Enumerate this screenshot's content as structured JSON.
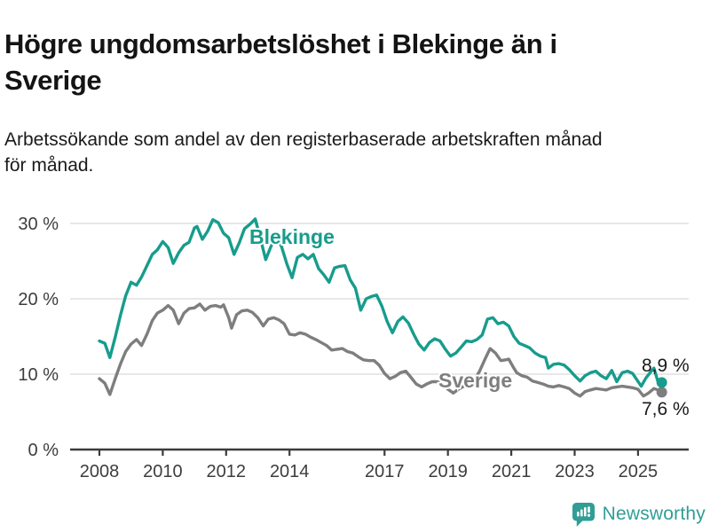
{
  "header": {
    "title_lines": [
      "Högre ungdomsarbetslöshet i Blekinge än i",
      "Sverige"
    ],
    "subtitle_lines": [
      "Arbetssökande som andel av den registerbaserade arbetskraften månad",
      "för månad."
    ]
  },
  "chart_data": {
    "type": "line",
    "title": "Högre ungdomsarbetslöshet i Blekinge än i Sverige",
    "subtitle": "Arbetssökande som andel av den registerbaserade arbetskraften månad för månad.",
    "xlabel": "",
    "ylabel": "",
    "unit": "%",
    "grid": true,
    "xlim": [
      2007.9,
      2026.3
    ],
    "ylim": [
      0,
      32
    ],
    "x_ticks": [
      "2008",
      "2010",
      "2012",
      "2014",
      "2017",
      "2019",
      "2021",
      "2023",
      "2025"
    ],
    "x_tick_years": [
      2008,
      2010,
      2012,
      2014,
      2017,
      2019,
      2021,
      2023,
      2025
    ],
    "y_ticks": [
      0,
      10,
      20,
      30
    ],
    "y_tick_labels": [
      "0 %",
      "10 %",
      "20 %",
      "30 %"
    ],
    "axis_color": "#3c3c3c",
    "grid_color": "#d9d9d9",
    "tick_label_color": "#3d3d3d",
    "value_label_color": "#1a1a1a",
    "series": [
      {
        "name": "Sverige",
        "color": "#7e7e7e",
        "end_label": "7,6 %",
        "end_value": 7.6,
        "points": [
          [
            2008.0,
            9.4
          ],
          [
            2008.17,
            8.8
          ],
          [
            2008.33,
            7.3
          ],
          [
            2008.5,
            9.4
          ],
          [
            2008.67,
            11.4
          ],
          [
            2008.83,
            13.0
          ],
          [
            2009.0,
            14.0
          ],
          [
            2009.17,
            14.6
          ],
          [
            2009.33,
            13.8
          ],
          [
            2009.5,
            15.3
          ],
          [
            2009.67,
            17.1
          ],
          [
            2009.83,
            18.1
          ],
          [
            2010.0,
            18.5
          ],
          [
            2010.17,
            19.1
          ],
          [
            2010.33,
            18.5
          ],
          [
            2010.5,
            16.7
          ],
          [
            2010.67,
            18.1
          ],
          [
            2010.83,
            18.7
          ],
          [
            2011.0,
            18.8
          ],
          [
            2011.17,
            19.3
          ],
          [
            2011.33,
            18.5
          ],
          [
            2011.5,
            19.0
          ],
          [
            2011.67,
            19.1
          ],
          [
            2011.83,
            18.9
          ],
          [
            2011.92,
            19.2
          ],
          [
            2012.08,
            17.5
          ],
          [
            2012.17,
            16.1
          ],
          [
            2012.33,
            17.9
          ],
          [
            2012.5,
            18.4
          ],
          [
            2012.67,
            18.5
          ],
          [
            2012.83,
            18.2
          ],
          [
            2013.0,
            17.5
          ],
          [
            2013.17,
            16.4
          ],
          [
            2013.33,
            17.3
          ],
          [
            2013.5,
            17.5
          ],
          [
            2013.67,
            17.2
          ],
          [
            2013.83,
            16.7
          ],
          [
            2014.0,
            15.3
          ],
          [
            2014.17,
            15.2
          ],
          [
            2014.33,
            15.5
          ],
          [
            2014.5,
            15.3
          ],
          [
            2014.67,
            14.9
          ],
          [
            2014.83,
            14.6
          ],
          [
            2015.0,
            14.2
          ],
          [
            2015.17,
            13.8
          ],
          [
            2015.33,
            13.2
          ],
          [
            2015.5,
            13.3
          ],
          [
            2015.67,
            13.4
          ],
          [
            2015.83,
            13.0
          ],
          [
            2016.0,
            12.8
          ],
          [
            2016.17,
            12.3
          ],
          [
            2016.33,
            11.9
          ],
          [
            2016.5,
            11.8
          ],
          [
            2016.67,
            11.8
          ],
          [
            2016.83,
            11.2
          ],
          [
            2017.0,
            10.1
          ],
          [
            2017.17,
            9.4
          ],
          [
            2017.33,
            9.7
          ],
          [
            2017.5,
            10.2
          ],
          [
            2017.67,
            10.4
          ],
          [
            2017.83,
            9.6
          ],
          [
            2018.0,
            8.7
          ],
          [
            2018.17,
            8.3
          ],
          [
            2018.33,
            8.7
          ],
          [
            2018.5,
            9.0
          ],
          [
            2018.67,
            9.0
          ],
          [
            2018.83,
            8.7
          ],
          [
            2019.0,
            8.0
          ],
          [
            2019.17,
            7.5
          ],
          [
            2019.33,
            8.0
          ],
          [
            2019.5,
            8.4
          ],
          [
            2019.67,
            8.6
          ],
          [
            2019.83,
            9.2
          ],
          [
            2020.0,
            10.4
          ],
          [
            2020.17,
            12.0
          ],
          [
            2020.33,
            13.4
          ],
          [
            2020.5,
            12.8
          ],
          [
            2020.67,
            11.8
          ],
          [
            2020.83,
            11.9
          ],
          [
            2020.92,
            12.0
          ],
          [
            2021.08,
            10.8
          ],
          [
            2021.17,
            10.2
          ],
          [
            2021.33,
            9.8
          ],
          [
            2021.5,
            9.6
          ],
          [
            2021.67,
            9.1
          ],
          [
            2021.83,
            8.9
          ],
          [
            2022.0,
            8.7
          ],
          [
            2022.17,
            8.4
          ],
          [
            2022.33,
            8.3
          ],
          [
            2022.5,
            8.5
          ],
          [
            2022.67,
            8.3
          ],
          [
            2022.83,
            8.1
          ],
          [
            2023.0,
            7.5
          ],
          [
            2023.17,
            7.1
          ],
          [
            2023.33,
            7.7
          ],
          [
            2023.5,
            7.9
          ],
          [
            2023.67,
            8.1
          ],
          [
            2023.83,
            8.0
          ],
          [
            2024.0,
            7.9
          ],
          [
            2024.17,
            8.2
          ],
          [
            2024.33,
            8.3
          ],
          [
            2024.5,
            8.4
          ],
          [
            2024.67,
            8.3
          ],
          [
            2024.83,
            8.2
          ],
          [
            2025.0,
            8.0
          ],
          [
            2025.17,
            7.1
          ],
          [
            2025.33,
            7.5
          ],
          [
            2025.5,
            8.1
          ],
          [
            2025.63,
            7.9
          ],
          [
            2025.75,
            7.6
          ]
        ]
      },
      {
        "name": "Blekinge",
        "color": "#179c8d",
        "end_label": "8,9 %",
        "end_value": 8.9,
        "points": [
          [
            2008.0,
            14.4
          ],
          [
            2008.17,
            14.1
          ],
          [
            2008.33,
            12.2
          ],
          [
            2008.5,
            14.9
          ],
          [
            2008.67,
            17.9
          ],
          [
            2008.83,
            20.4
          ],
          [
            2009.0,
            22.2
          ],
          [
            2009.17,
            21.8
          ],
          [
            2009.33,
            22.9
          ],
          [
            2009.5,
            24.4
          ],
          [
            2009.67,
            25.9
          ],
          [
            2009.83,
            26.5
          ],
          [
            2010.0,
            27.6
          ],
          [
            2010.17,
            26.8
          ],
          [
            2010.33,
            24.7
          ],
          [
            2010.5,
            26.1
          ],
          [
            2010.67,
            27.1
          ],
          [
            2010.83,
            27.5
          ],
          [
            2011.0,
            29.4
          ],
          [
            2011.08,
            29.6
          ],
          [
            2011.25,
            27.9
          ],
          [
            2011.42,
            29.0
          ],
          [
            2011.58,
            30.5
          ],
          [
            2011.75,
            30.1
          ],
          [
            2011.92,
            28.7
          ],
          [
            2012.08,
            28.1
          ],
          [
            2012.25,
            25.9
          ],
          [
            2012.42,
            27.5
          ],
          [
            2012.58,
            29.3
          ],
          [
            2012.75,
            29.9
          ],
          [
            2012.92,
            30.6
          ],
          [
            2013.08,
            28.0
          ],
          [
            2013.25,
            25.2
          ],
          [
            2013.42,
            27.0
          ],
          [
            2013.58,
            28.5
          ],
          [
            2013.75,
            26.9
          ],
          [
            2013.92,
            24.6
          ],
          [
            2014.08,
            22.8
          ],
          [
            2014.25,
            25.5
          ],
          [
            2014.42,
            25.9
          ],
          [
            2014.58,
            25.3
          ],
          [
            2014.75,
            25.9
          ],
          [
            2014.92,
            24.0
          ],
          [
            2015.08,
            23.2
          ],
          [
            2015.25,
            22.2
          ],
          [
            2015.42,
            24.1
          ],
          [
            2015.58,
            24.3
          ],
          [
            2015.75,
            24.4
          ],
          [
            2015.92,
            22.5
          ],
          [
            2016.08,
            21.4
          ],
          [
            2016.25,
            18.5
          ],
          [
            2016.42,
            20.0
          ],
          [
            2016.58,
            20.3
          ],
          [
            2016.75,
            20.5
          ],
          [
            2016.92,
            19.0
          ],
          [
            2017.08,
            17.0
          ],
          [
            2017.25,
            15.5
          ],
          [
            2017.42,
            17.0
          ],
          [
            2017.58,
            17.6
          ],
          [
            2017.75,
            16.8
          ],
          [
            2017.92,
            15.3
          ],
          [
            2018.08,
            14.0
          ],
          [
            2018.25,
            13.2
          ],
          [
            2018.42,
            14.2
          ],
          [
            2018.58,
            14.7
          ],
          [
            2018.75,
            14.4
          ],
          [
            2018.92,
            13.3
          ],
          [
            2019.08,
            12.4
          ],
          [
            2019.25,
            12.8
          ],
          [
            2019.42,
            13.6
          ],
          [
            2019.58,
            14.4
          ],
          [
            2019.75,
            14.3
          ],
          [
            2019.92,
            14.6
          ],
          [
            2020.08,
            15.2
          ],
          [
            2020.25,
            17.3
          ],
          [
            2020.42,
            17.5
          ],
          [
            2020.58,
            16.7
          ],
          [
            2020.75,
            16.9
          ],
          [
            2020.92,
            16.4
          ],
          [
            2021.08,
            15.0
          ],
          [
            2021.25,
            14.1
          ],
          [
            2021.42,
            13.8
          ],
          [
            2021.58,
            13.5
          ],
          [
            2021.75,
            12.8
          ],
          [
            2021.92,
            12.4
          ],
          [
            2022.08,
            12.2
          ],
          [
            2022.17,
            10.8
          ],
          [
            2022.33,
            11.3
          ],
          [
            2022.5,
            11.4
          ],
          [
            2022.67,
            11.2
          ],
          [
            2022.83,
            10.6
          ],
          [
            2023.0,
            9.8
          ],
          [
            2023.17,
            9.1
          ],
          [
            2023.33,
            9.8
          ],
          [
            2023.5,
            10.2
          ],
          [
            2023.67,
            10.4
          ],
          [
            2023.83,
            9.8
          ],
          [
            2024.0,
            9.4
          ],
          [
            2024.17,
            10.5
          ],
          [
            2024.33,
            9.0
          ],
          [
            2024.5,
            10.2
          ],
          [
            2024.67,
            10.4
          ],
          [
            2024.83,
            10.1
          ],
          [
            2025.1,
            8.4
          ],
          [
            2025.25,
            9.5
          ],
          [
            2025.42,
            10.4
          ],
          [
            2025.5,
            10.8
          ],
          [
            2025.63,
            9.0
          ],
          [
            2025.75,
            8.9
          ]
        ]
      }
    ]
  },
  "branding": {
    "logo_text": "Newsworthy",
    "logo_color": "#2f9e96",
    "logo_icon": "bar-chart-speech-bubble-icon"
  }
}
